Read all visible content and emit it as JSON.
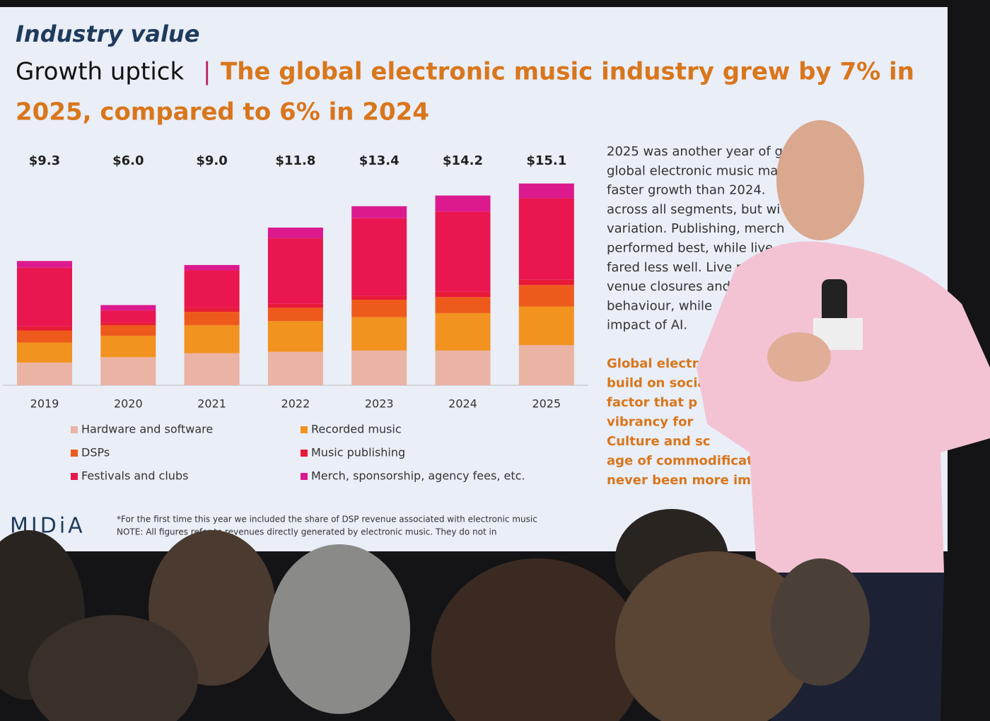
{
  "slide": {
    "kicker": "Industry value",
    "headline_lead": "Growth uptick",
    "headline_sep": "|",
    "headline_lines": [
      "The global electronic music industry grew by 7% in",
      "2025, compared to 6% in 2024"
    ],
    "paragraph": [
      "2025 was another year of g",
      "global electronic music ma",
      "faster growth than 2024.",
      "across all segments, but wi",
      "variation. Publishing, merch",
      "performed best, while live",
      "fared less well. Live ref",
      "venue closures and",
      "behaviour, while",
      "impact of AI."
    ],
    "highlight": [
      "Global electron",
      "build on socia",
      "factor that p",
      "vibrancy for",
      "Culture and sc",
      "age of commodification",
      "never been more impor"
    ],
    "footnotes": [
      "*For the first time this year we included the share of DSP revenue associated with electronic music",
      "NOTE: All figures refer to revenues directly generated by electronic music. They do not in"
    ],
    "logo": "MIDiA"
  },
  "chart_data": {
    "type": "stacked-bar",
    "categories": [
      "2019",
      "2020",
      "2021",
      "2022",
      "2023",
      "2024",
      "2025"
    ],
    "series": [
      {
        "name": "Hardware and software",
        "color": "#eab3a3",
        "values": [
          1.7,
          2.1,
          2.4,
          2.5,
          2.6,
          2.6,
          3.0
        ]
      },
      {
        "name": "Recorded music",
        "color": "#f2921f",
        "values": [
          1.5,
          1.6,
          2.1,
          2.3,
          2.5,
          2.8,
          2.9
        ]
      },
      {
        "name": "DSPs",
        "color": "#ee5a1c",
        "values": [
          0.9,
          0.8,
          1.0,
          1.0,
          1.3,
          1.2,
          1.6
        ]
      },
      {
        "name": "Music publishing",
        "color": "#e81a38",
        "values": [
          0.3,
          0.2,
          0.3,
          0.3,
          0.3,
          0.4,
          0.4
        ]
      },
      {
        "name": "Festivals and clubs",
        "color": "#ea1650",
        "values": [
          4.4,
          0.9,
          2.8,
          4.9,
          5.8,
          6.0,
          6.1
        ]
      },
      {
        "name": "Merch, sponsorship, agency fees, etc.",
        "color": "#dc1a8e",
        "values": [
          0.5,
          0.4,
          0.4,
          0.8,
          0.9,
          1.2,
          1.1
        ]
      }
    ],
    "totals": {
      "values": [
        9.3,
        6.0,
        9.0,
        11.8,
        13.4,
        14.2,
        15.1
      ],
      "value_labels": [
        "$9.3",
        "$6.0",
        "$9.0",
        "$11.8",
        "$13.4",
        "$14.2",
        "$15.1"
      ]
    }
  }
}
